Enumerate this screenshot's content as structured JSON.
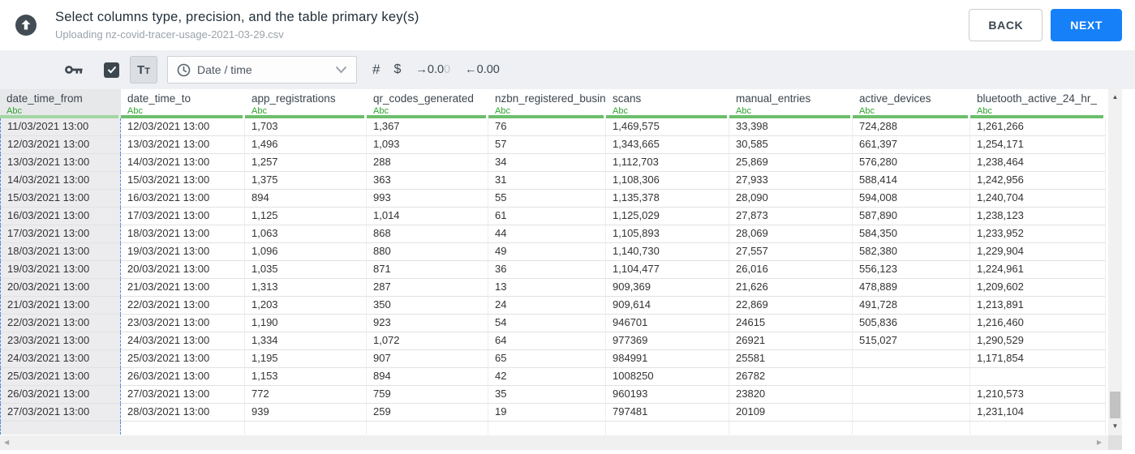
{
  "header": {
    "title": "Select columns type, precision, and the table primary key(s)",
    "subtitle": "Uploading nz-covid-tracer-usage-2021-03-29.csv",
    "buttons": {
      "back": "BACK",
      "next": "NEXT"
    }
  },
  "toolbar": {
    "primary_key_icon": "key-icon",
    "checkbox_checked": true,
    "text_type_label": "Tt",
    "type_dropdown": {
      "icon": "clock-icon",
      "value": "Date / time"
    },
    "number_type_label": "#",
    "currency_type_label": "$",
    "decimal_right": {
      "arrow": "→",
      "value": "0.0",
      "faded": "0"
    },
    "decimal_left": {
      "arrow": "←",
      "value": "0.00",
      "faded": ""
    }
  },
  "table": {
    "columns": [
      {
        "name": "date_time_from",
        "type": "Abc",
        "selected": true
      },
      {
        "name": "date_time_to",
        "type": "Abc",
        "selected": false
      },
      {
        "name": "app_registrations",
        "type": "Abc",
        "selected": false
      },
      {
        "name": "qr_codes_generated",
        "type": "Abc",
        "selected": false
      },
      {
        "name": "nzbn_registered_busine",
        "type": "Abc",
        "selected": false
      },
      {
        "name": "scans",
        "type": "Abc",
        "selected": false
      },
      {
        "name": "manual_entries",
        "type": "Abc",
        "selected": false
      },
      {
        "name": "active_devices",
        "type": "Abc",
        "selected": false
      },
      {
        "name": "bluetooth_active_24_hr_",
        "type": "Abc",
        "selected": false
      }
    ],
    "rows": [
      [
        "11/03/2021 13:00",
        "12/03/2021 13:00",
        "1,703",
        "1,367",
        "76",
        "1,469,575",
        "33,398",
        "724,288",
        "1,261,266"
      ],
      [
        "12/03/2021 13:00",
        "13/03/2021 13:00",
        "1,496",
        "1,093",
        "57",
        "1,343,665",
        "30,585",
        "661,397",
        "1,254,171"
      ],
      [
        "13/03/2021 13:00",
        "14/03/2021 13:00",
        "1,257",
        "288",
        "34",
        "1,112,703",
        "25,869",
        "576,280",
        "1,238,464"
      ],
      [
        "14/03/2021 13:00",
        "15/03/2021 13:00",
        "1,375",
        "363",
        "31",
        "1,108,306",
        "27,933",
        "588,414",
        "1,242,956"
      ],
      [
        "15/03/2021 13:00",
        "16/03/2021 13:00",
        "894",
        "993",
        "55",
        "1,135,378",
        "28,090",
        "594,008",
        "1,240,704"
      ],
      [
        "16/03/2021 13:00",
        "17/03/2021 13:00",
        "1,125",
        "1,014",
        "61",
        "1,125,029",
        "27,873",
        "587,890",
        "1,238,123"
      ],
      [
        "17/03/2021 13:00",
        "18/03/2021 13:00",
        "1,063",
        "868",
        "44",
        "1,105,893",
        "28,069",
        "584,350",
        "1,233,952"
      ],
      [
        "18/03/2021 13:00",
        "19/03/2021 13:00",
        "1,096",
        "880",
        "49",
        "1,140,730",
        "27,557",
        "582,380",
        "1,229,904"
      ],
      [
        "19/03/2021 13:00",
        "20/03/2021 13:00",
        "1,035",
        "871",
        "36",
        "1,104,477",
        "26,016",
        "556,123",
        "1,224,961"
      ],
      [
        "20/03/2021 13:00",
        "21/03/2021 13:00",
        "1,313",
        "287",
        "13",
        "909,369",
        "21,626",
        "478,889",
        "1,209,602"
      ],
      [
        "21/03/2021 13:00",
        "22/03/2021 13:00",
        "1,203",
        "350",
        "24",
        "909,614",
        "22,869",
        "491,728",
        "1,213,891"
      ],
      [
        "22/03/2021 13:00",
        "23/03/2021 13:00",
        "1,190",
        "923",
        "54",
        "946701",
        "24615",
        "505,836",
        "1,216,460"
      ],
      [
        "23/03/2021 13:00",
        "24/03/2021 13:00",
        "1,334",
        "1,072",
        "64",
        "977369",
        "26921",
        "515,027",
        "1,290,529"
      ],
      [
        "24/03/2021 13:00",
        "25/03/2021 13:00",
        "1,195",
        "907",
        "65",
        "984991",
        "25581",
        "",
        "1,171,854"
      ],
      [
        "25/03/2021 13:00",
        "26/03/2021 13:00",
        "1,153",
        "894",
        "42",
        "1008250",
        "26782",
        "",
        ""
      ],
      [
        "26/03/2021 13:00",
        "27/03/2021 13:00",
        "772",
        "759",
        "35",
        "960193",
        "23820",
        "",
        "1,210,573"
      ],
      [
        "27/03/2021 13:00",
        "28/03/2021 13:00",
        "939",
        "259",
        "19",
        "797481",
        "20109",
        "",
        "1,231,104"
      ]
    ]
  },
  "colors": {
    "accent_blue": "#1580f8",
    "type_green": "#2da32d",
    "header_underline_green": "#6cbf6c",
    "selection_dashed_blue": "#4f86e0",
    "toolbar_bg": "#eef0f4"
  }
}
